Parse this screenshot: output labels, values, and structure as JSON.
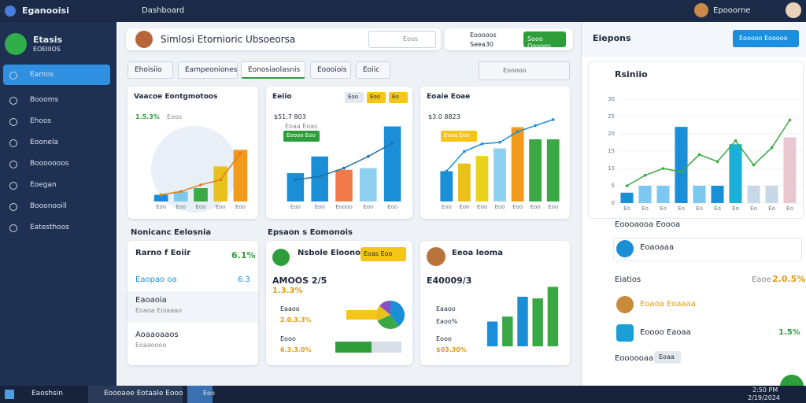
{
  "topbar": {
    "app": "Eganooisi",
    "menu": "Dashboard",
    "user": "Epooorne"
  },
  "sidebar": {
    "brand": "Etasis",
    "sub": "EOEIIIOS",
    "items": [
      "Eamos",
      "Boooms",
      "Ehoos",
      "Eoonela",
      "Booooooos",
      "Eoegan",
      "Booonooill",
      "Eatesthoos"
    ]
  },
  "header": {
    "title": "Simlosi Etornioric Ubsoeorsa",
    "search": "Eoos",
    "link_title": "Eooooos",
    "link_sub": "Seea30",
    "button": "Sooo Ooooos"
  },
  "tabs": [
    "Ehoisiio",
    "Eampeoniones",
    "Eonosiaolasnis",
    "Eoooiois",
    "Eoiic"
  ],
  "search_placeholder": "Eooooo",
  "cards": [
    {
      "title": "Vaacoe Eontgmotoos",
      "stat": "1.5.3%",
      "stat_sub": "Eoos",
      "chart": {
        "categories": [
          "Eoo",
          "Eoo",
          "Eoo",
          "Eoo",
          "Eoo"
        ],
        "values": [
          8,
          12,
          16,
          42,
          62
        ],
        "colors": [
          "#1a8fd8",
          "#7cc8f0",
          "#3aa845",
          "#e8c21a",
          "#f29a1c"
        ],
        "line": [
          8,
          12,
          20,
          26,
          58
        ],
        "line_color": "#e07b1a",
        "ylim": [
          0,
          100
        ]
      }
    },
    {
      "title": "Eeiio",
      "chips": [
        "Eoo",
        "Eoo",
        "Eo"
      ],
      "stat": "$51.7 803",
      "stat_sub": "Eoaa Eoas",
      "badge": "Eoooo Eoo",
      "chart": {
        "categories": [
          "Eoo",
          "Eoo",
          "Eoooo",
          "Eoo",
          "Eoo"
        ],
        "values": [
          34,
          54,
          38,
          40,
          90
        ],
        "colors": [
          "#1a8fd8",
          "#1a8fd8",
          "#f07a4a",
          "#8fd0f0",
          "#1a8fd8"
        ],
        "line": [
          26,
          30,
          40,
          54,
          70
        ],
        "line_color": "#1e6fa8",
        "ylim": [
          0,
          100
        ]
      }
    },
    {
      "title": "Eoaie Eoae",
      "stat": "$3.0 8823",
      "badge": "Eoaa Eoo",
      "chart": {
        "categories": [
          "Eoo",
          "Eoo",
          "Eoo",
          "Eoo",
          "Eoo",
          "Eoo",
          "Eoo"
        ],
        "values": [
          40,
          50,
          60,
          70,
          98,
          82,
          82
        ],
        "colors": [
          "#1a8fd8",
          "#e8c21a",
          "#e8d31a",
          "#8fd0f0",
          "#f29a1c",
          "#3aa845",
          "#3aa845"
        ],
        "line": [
          40,
          66,
          76,
          78,
          92,
          100,
          108
        ],
        "line_color": "#1a8fd8",
        "ylim": [
          0,
          110
        ]
      }
    }
  ],
  "sections": [
    "Nonicanc Eelosnia",
    "Epsaon s Eomonois"
  ],
  "list_card": {
    "head": "Rarno f Eoiir",
    "head_stat": "6.1%",
    "row1": "Eaopao oa",
    "row1_stat": "6.3",
    "rows": [
      {
        "title": "Eaoaoia",
        "sub": "Eoaoa Eoiaaao"
      },
      {
        "title": "Aoaaoaaos",
        "sub": "Eoaaoooo"
      }
    ]
  },
  "mid_card": {
    "title": "Nsbole Eloonols",
    "badge": "Eoas Eoo",
    "big": "AMOOS 2/5",
    "stat": "1.3.3%",
    "items": [
      "Eaaoo",
      "2.0.3.3%",
      "Eooo",
      "6.3.3.0%"
    ],
    "pie": {
      "values": [
        40,
        28,
        18,
        14
      ],
      "colors": [
        "#1a8fd8",
        "#3aa845",
        "#e8c21a",
        "#8a4fc0"
      ]
    }
  },
  "right_card": {
    "title": "Eeoa leoma",
    "big": "E40009/3",
    "items": [
      "Eaaoo",
      "Eaoo%",
      "Eooo",
      "$03.30%"
    ],
    "chart": {
      "values": [
        30,
        36,
        60,
        58,
        72
      ],
      "colors": [
        "#1a8fd8",
        "#3aa845",
        "#1a8fd8",
        "#3aa845",
        "#3aa845"
      ],
      "ylim": [
        0,
        80
      ]
    }
  },
  "panel": {
    "title": "Eiepons",
    "button": "Eooooo Eooooo",
    "chart_title": "Rsiniio",
    "chart": {
      "categories": [
        "Eo",
        "Eo",
        "Eo",
        "Eo",
        "Eo",
        "Eo",
        "Eo",
        "Eo",
        "Eo",
        "Eo"
      ],
      "values": [
        3,
        5,
        5,
        22,
        5,
        5,
        17,
        5,
        5,
        19
      ],
      "colors": [
        "#1a8fd8",
        "#7cc8f0",
        "#7cc8f0",
        "#1a8fd8",
        "#7cc8f0",
        "#1a8fd8",
        "#1ab0d8",
        "#c8d8e8",
        "#c8d8e8",
        "#e8c8d0"
      ],
      "line": [
        5,
        8,
        10,
        9,
        14,
        12,
        18,
        11,
        16,
        24
      ],
      "line_color": "#3aa845",
      "ylim": [
        0,
        30
      ],
      "yticks": [
        0,
        5,
        10,
        15,
        20,
        25,
        30
      ]
    },
    "row1": "Eoooaooa Eoooa",
    "row2": "Eoaoaaa",
    "section": "Eiatios",
    "section_stat_label": "Eaoe",
    "section_stat": "2.0.5%",
    "item1": "Eoaoa Eoaaaa",
    "item2": "Eoooo Eaoaa",
    "item2_stat": "1.5%",
    "foot": "Eoooooaa",
    "foot_chip": "Eoaa"
  },
  "taskbar": {
    "search": "Eaoshsin",
    "app": "Eoooaoe Eotaale Eooo",
    "app2": "Eoo",
    "time": "2:50 PM",
    "date": "2/19/2024"
  }
}
